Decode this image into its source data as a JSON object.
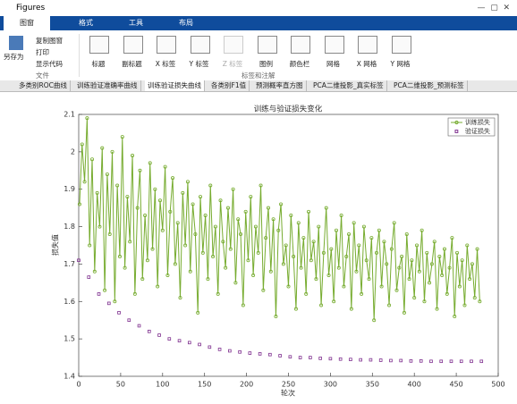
{
  "window": {
    "title": "Figures"
  },
  "ribbon_tabs": [
    "图窗",
    "格式",
    "工具",
    "布局"
  ],
  "file_buttons": {
    "save": "另存为",
    "copy": "复制图窗",
    "print": "打印",
    "code": "显示代码",
    "section": "文件"
  },
  "annot_buttons": [
    "标题",
    "副标题",
    "X 标签",
    "Y 标签",
    "Z 标签",
    "图例",
    "颜色栏",
    "网格",
    "X 网格",
    "Y 网格"
  ],
  "annot_section": "标签和注解",
  "figure_tabs": [
    "多类别ROC曲线",
    "训练验证准确率曲线",
    "训练验证损失曲线",
    "各类别F1值",
    "预测概率直方图",
    "PCA二维投影_真实标签",
    "PCA二维投影_预测标签"
  ],
  "chart_data": {
    "type": "line",
    "title": "训练与验证损失变化",
    "xlabel": "轮次",
    "ylabel": "损失值",
    "xlim": [
      0,
      500
    ],
    "xticks": [
      0,
      50,
      100,
      150,
      200,
      250,
      300,
      350,
      400,
      450,
      500
    ],
    "ylim": [
      1.4,
      2.1
    ],
    "yticks": [
      1.4,
      1.5,
      1.6,
      1.7,
      1.8,
      1.9,
      2,
      2.1
    ],
    "legend": "upper right",
    "series": [
      {
        "name": "训练损失",
        "color": "#77ac30",
        "marker": "circle",
        "x": [
          1,
          4,
          7,
          10,
          13,
          16,
          19,
          22,
          25,
          28,
          31,
          34,
          37,
          40,
          43,
          46,
          49,
          52,
          55,
          58,
          61,
          64,
          67,
          70,
          73,
          76,
          79,
          82,
          85,
          88,
          91,
          94,
          97,
          100,
          103,
          106,
          109,
          112,
          115,
          118,
          121,
          124,
          127,
          130,
          133,
          136,
          139,
          142,
          145,
          148,
          151,
          154,
          157,
          160,
          163,
          166,
          169,
          172,
          175,
          178,
          181,
          184,
          187,
          190,
          193,
          196,
          199,
          202,
          205,
          208,
          211,
          214,
          217,
          220,
          223,
          226,
          229,
          232,
          235,
          238,
          241,
          244,
          247,
          250,
          253,
          256,
          259,
          262,
          265,
          268,
          271,
          274,
          277,
          280,
          283,
          286,
          289,
          292,
          295,
          298,
          301,
          304,
          307,
          310,
          313,
          316,
          319,
          322,
          325,
          328,
          331,
          334,
          337,
          340,
          343,
          346,
          349,
          352,
          355,
          358,
          361,
          364,
          367,
          370,
          373,
          376,
          379,
          382,
          385,
          388,
          391,
          394,
          397,
          400,
          403,
          406,
          409,
          412,
          415,
          418,
          421,
          424,
          427,
          430,
          433,
          436,
          439,
          442,
          445,
          448,
          451,
          454,
          457,
          460,
          463,
          466,
          469,
          472,
          475,
          478
        ],
        "values": [
          1.86,
          2.02,
          1.92,
          2.09,
          1.75,
          1.98,
          1.68,
          1.89,
          1.8,
          2.01,
          1.63,
          1.94,
          1.78,
          2.0,
          1.6,
          1.91,
          1.72,
          2.04,
          1.69,
          1.88,
          1.76,
          1.99,
          1.62,
          1.85,
          1.95,
          1.66,
          1.83,
          1.71,
          1.97,
          1.74,
          1.9,
          1.64,
          1.87,
          1.79,
          1.96,
          1.67,
          1.84,
          1.93,
          1.7,
          1.81,
          1.61,
          1.89,
          1.75,
          1.92,
          1.68,
          1.86,
          1.78,
          1.57,
          1.88,
          1.73,
          1.83,
          1.66,
          1.91,
          1.72,
          1.8,
          1.62,
          1.87,
          1.76,
          1.69,
          1.85,
          1.74,
          1.9,
          1.65,
          1.82,
          1.78,
          1.59,
          1.84,
          1.71,
          1.88,
          1.67,
          1.8,
          1.73,
          1.91,
          1.63,
          1.77,
          1.85,
          1.68,
          1.82,
          1.56,
          1.79,
          1.86,
          1.7,
          1.75,
          1.64,
          1.83,
          1.72,
          1.58,
          1.81,
          1.69,
          1.77,
          1.62,
          1.84,
          1.71,
          1.76,
          1.66,
          1.8,
          1.59,
          1.73,
          1.85,
          1.67,
          1.74,
          1.6,
          1.79,
          1.69,
          1.83,
          1.64,
          1.72,
          1.78,
          1.58,
          1.81,
          1.68,
          1.75,
          1.62,
          1.8,
          1.71,
          1.66,
          1.77,
          1.55,
          1.73,
          1.79,
          1.64,
          1.76,
          1.7,
          1.59,
          1.74,
          1.81,
          1.63,
          1.69,
          1.72,
          1.57,
          1.78,
          1.66,
          1.71,
          1.61,
          1.75,
          1.68,
          1.79,
          1.6,
          1.73,
          1.65,
          1.7,
          1.76,
          1.58,
          1.72,
          1.67,
          1.74,
          1.62,
          1.69,
          1.77,
          1.56,
          1.73,
          1.64,
          1.71,
          1.59,
          1.75,
          1.66,
          1.7,
          1.61,
          1.74,
          1.6
        ]
      },
      {
        "name": "验证损失",
        "color": "#7e2f8e",
        "marker": "square",
        "x": [
          0,
          12,
          24,
          36,
          48,
          60,
          72,
          84,
          96,
          108,
          120,
          132,
          144,
          156,
          168,
          180,
          192,
          204,
          216,
          228,
          240,
          252,
          264,
          276,
          288,
          300,
          312,
          324,
          336,
          348,
          360,
          372,
          384,
          396,
          408,
          420,
          432,
          444,
          456,
          468,
          480
        ],
        "values": [
          1.71,
          1.665,
          1.62,
          1.595,
          1.57,
          1.55,
          1.535,
          1.52,
          1.51,
          1.5,
          1.495,
          1.49,
          1.485,
          1.478,
          1.472,
          1.468,
          1.465,
          1.462,
          1.46,
          1.458,
          1.455,
          1.452,
          1.45,
          1.45,
          1.448,
          1.447,
          1.446,
          1.445,
          1.444,
          1.444,
          1.443,
          1.442,
          1.442,
          1.441,
          1.441,
          1.44,
          1.44,
          1.44,
          1.44,
          1.44,
          1.44
        ]
      }
    ]
  }
}
